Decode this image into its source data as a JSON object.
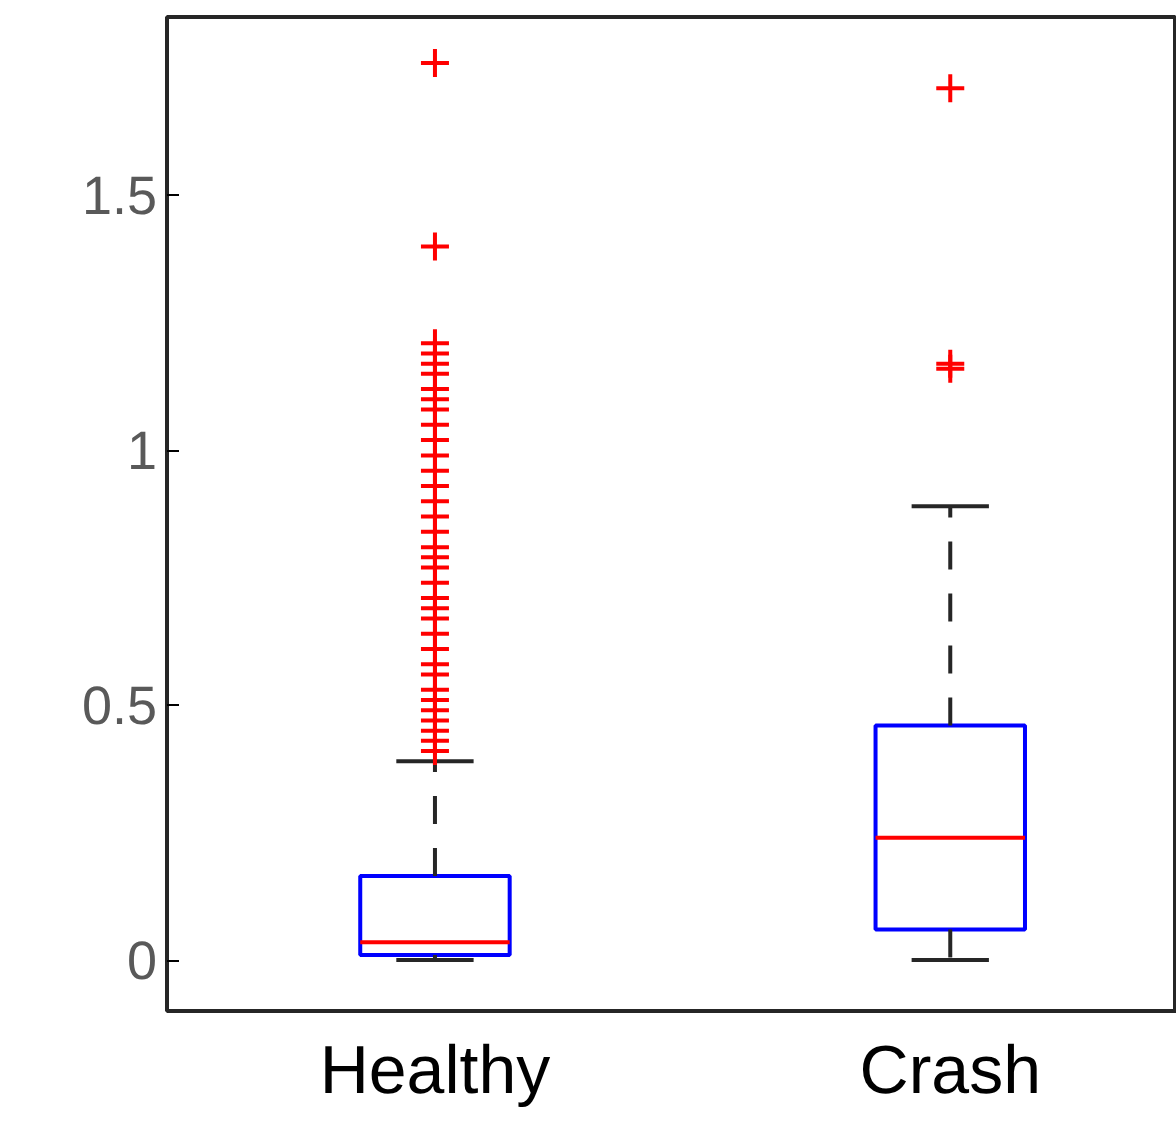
{
  "chart_data": {
    "type": "box",
    "categories": [
      "Healthy",
      "Crash"
    ],
    "ylim": [
      -0.1,
      1.85
    ],
    "yticks": [
      0,
      0.5,
      1,
      1.5
    ],
    "grid": false,
    "series": [
      {
        "color": "#0000ff",
        "boxes": [
          {
            "low": 0,
            "q1": 0.01,
            "median": 0.035,
            "q3": 0.165,
            "high": 0.39,
            "outliers": [
              1.76,
              1.4,
              1.21,
              1.19,
              1.17,
              1.15,
              1.12,
              1.1,
              1.08,
              1.05,
              1.02,
              0.99,
              0.96,
              0.93,
              0.9,
              0.87,
              0.84,
              0.81,
              0.79,
              0.77,
              0.74,
              0.71,
              0.69,
              0.67,
              0.64,
              0.61,
              0.58,
              0.56,
              0.53,
              0.51,
              0.49,
              0.47,
              0.45,
              0.43,
              0.41
            ]
          },
          {
            "low": 0,
            "q1": 0.06,
            "median": 0.24,
            "q3": 0.46,
            "high": 0.89,
            "outliers": [
              1.71,
              1.17,
              1.16
            ]
          }
        ]
      }
    ]
  }
}
